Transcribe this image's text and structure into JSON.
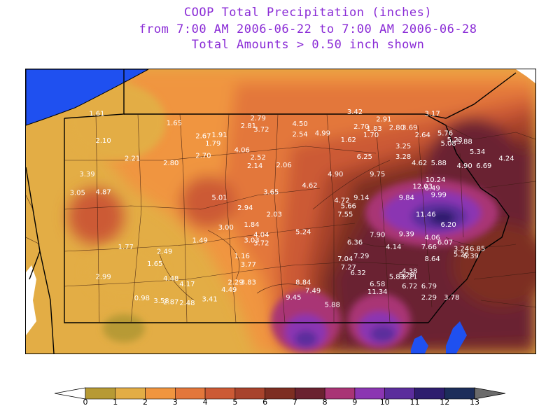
{
  "title": {
    "line1": "COOP Total Precipitation (inches)",
    "line2": "from 7:00 AM 2006-06-22 to 7:00 AM 2006-06-28",
    "line3": "Total Amounts > 0.50 inch shown"
  },
  "colors": {
    "lake": "#1f50f0",
    "land_background": "#e9a847",
    "state_border": "#000000",
    "county_border": "#3a1a10",
    "label": "#ffffff"
  },
  "legend": {
    "ticks": [
      "0",
      "1",
      "2",
      "3",
      "4",
      "5",
      "6",
      "7",
      "8",
      "9",
      "10",
      "11",
      "12",
      "13"
    ],
    "bins": [
      {
        "from": 0,
        "to": 1,
        "color": "#b79a34"
      },
      {
        "from": 1,
        "to": 2,
        "color": "#e3ad45"
      },
      {
        "from": 2,
        "to": 3,
        "color": "#f0953f"
      },
      {
        "from": 3,
        "to": 4,
        "color": "#e3773b"
      },
      {
        "from": 4,
        "to": 5,
        "color": "#cc5a35"
      },
      {
        "from": 5,
        "to": 6,
        "color": "#a8432c"
      },
      {
        "from": 6,
        "to": 7,
        "color": "#7d2e22"
      },
      {
        "from": 7,
        "to": 8,
        "color": "#6a2230"
      },
      {
        "from": 8,
        "to": 9,
        "color": "#a93475"
      },
      {
        "from": 9,
        "to": 10,
        "color": "#8b36b2"
      },
      {
        "from": 10,
        "to": 11,
        "color": "#5b2d9c"
      },
      {
        "from": 11,
        "to": 12,
        "color": "#2e1d6e"
      },
      {
        "from": 12,
        "to": 13,
        "color": "#1c2d5a"
      }
    ]
  },
  "stations": [
    {
      "v": "1.61",
      "x": -80.1,
      "y": 42.05
    },
    {
      "v": "1.65",
      "x": -78.9,
      "y": 41.95
    },
    {
      "v": "2.79",
      "x": -77.6,
      "y": 42.0
    },
    {
      "v": "3.42",
      "x": -76.1,
      "y": 42.07
    },
    {
      "v": "3.17",
      "x": -74.9,
      "y": 42.05
    },
    {
      "v": "2.81",
      "x": -77.75,
      "y": 41.92
    },
    {
      "v": "3.72",
      "x": -77.55,
      "y": 41.88
    },
    {
      "v": "4.50",
      "x": -76.95,
      "y": 41.94
    },
    {
      "v": "2.91",
      "x": -75.65,
      "y": 41.99
    },
    {
      "v": "2.70",
      "x": -76.0,
      "y": 41.91
    },
    {
      "v": "1.83",
      "x": -75.8,
      "y": 41.89
    },
    {
      "v": "2.80",
      "x": -75.45,
      "y": 41.9
    },
    {
      "v": "3.69",
      "x": -75.25,
      "y": 41.9
    },
    {
      "v": "2.67",
      "x": -78.45,
      "y": 41.81
    },
    {
      "v": "1.91",
      "x": -78.2,
      "y": 41.82
    },
    {
      "v": "2.54",
      "x": -76.95,
      "y": 41.83
    },
    {
      "v": "4.99",
      "x": -76.6,
      "y": 41.84
    },
    {
      "v": "1.62",
      "x": -76.2,
      "y": 41.77
    },
    {
      "v": "1.70",
      "x": -75.85,
      "y": 41.82
    },
    {
      "v": "2.64",
      "x": -75.05,
      "y": 41.82
    },
    {
      "v": "5.76",
      "x": -74.7,
      "y": 41.84
    },
    {
      "v": "2.10",
      "x": -80.0,
      "y": 41.76
    },
    {
      "v": "1.79",
      "x": -78.3,
      "y": 41.73
    },
    {
      "v": "5.23",
      "x": -74.55,
      "y": 41.77
    },
    {
      "v": "5.88",
      "x": -74.4,
      "y": 41.75
    },
    {
      "v": "5.08",
      "x": -74.65,
      "y": 41.73
    },
    {
      "v": "4.06",
      "x": -77.85,
      "y": 41.66
    },
    {
      "v": "3.25",
      "x": -75.35,
      "y": 41.7
    },
    {
      "v": "5.34",
      "x": -74.2,
      "y": 41.64
    },
    {
      "v": "2.21",
      "x": -79.55,
      "y": 41.57
    },
    {
      "v": "2.70",
      "x": -78.45,
      "y": 41.6
    },
    {
      "v": "2.52",
      "x": -77.6,
      "y": 41.58
    },
    {
      "v": "6.25",
      "x": -75.95,
      "y": 41.59
    },
    {
      "v": "3.28",
      "x": -75.35,
      "y": 41.59
    },
    {
      "v": "4.24",
      "x": -73.75,
      "y": 41.57
    },
    {
      "v": "2.80",
      "x": -78.95,
      "y": 41.52
    },
    {
      "v": "2.14",
      "x": -77.65,
      "y": 41.49
    },
    {
      "v": "2.06",
      "x": -77.2,
      "y": 41.5
    },
    {
      "v": "4.62",
      "x": -75.1,
      "y": 41.52
    },
    {
      "v": "5.88",
      "x": -74.8,
      "y": 41.52
    },
    {
      "v": "4.90",
      "x": -74.4,
      "y": 41.49
    },
    {
      "v": "6.69",
      "x": -74.1,
      "y": 41.49
    },
    {
      "v": "3.39",
      "x": -80.25,
      "y": 41.4
    },
    {
      "v": "4.90",
      "x": -76.4,
      "y": 41.4
    },
    {
      "v": "9.75",
      "x": -75.75,
      "y": 41.4
    },
    {
      "v": "10.24",
      "x": -74.85,
      "y": 41.34
    },
    {
      "v": "4.62",
      "x": -76.8,
      "y": 41.28
    },
    {
      "v": "12.03",
      "x": -75.05,
      "y": 41.27
    },
    {
      "v": "6.49",
      "x": -74.9,
      "y": 41.25
    },
    {
      "v": "3.05",
      "x": -80.4,
      "y": 41.2
    },
    {
      "v": "4.87",
      "x": -80.0,
      "y": 41.21
    },
    {
      "v": "3.65",
      "x": -77.4,
      "y": 41.21
    },
    {
      "v": "9.99",
      "x": -74.8,
      "y": 41.18
    },
    {
      "v": "5.01",
      "x": -78.2,
      "y": 41.15
    },
    {
      "v": "9.14",
      "x": -76.0,
      "y": 41.15
    },
    {
      "v": "9.84",
      "x": -75.3,
      "y": 41.15
    },
    {
      "v": "4.72",
      "x": -76.3,
      "y": 41.12
    },
    {
      "v": "2.94",
      "x": -77.8,
      "y": 41.04
    },
    {
      "v": "5.66",
      "x": -76.2,
      "y": 41.06
    },
    {
      "v": "2.03",
      "x": -77.35,
      "y": 40.97
    },
    {
      "v": "7.55",
      "x": -76.25,
      "y": 40.97
    },
    {
      "v": "11.46",
      "x": -75.0,
      "y": 40.97
    },
    {
      "v": "1.84",
      "x": -77.7,
      "y": 40.86
    },
    {
      "v": "3.00",
      "x": -78.1,
      "y": 40.83
    },
    {
      "v": "6.20",
      "x": -74.65,
      "y": 40.86
    },
    {
      "v": "5.24",
      "x": -76.9,
      "y": 40.78
    },
    {
      "v": "4.04",
      "x": -77.55,
      "y": 40.75
    },
    {
      "v": "7.90",
      "x": -75.75,
      "y": 40.75
    },
    {
      "v": "9.39",
      "x": -75.3,
      "y": 40.76
    },
    {
      "v": "4.06",
      "x": -74.9,
      "y": 40.72
    },
    {
      "v": "1.49",
      "x": -78.5,
      "y": 40.69
    },
    {
      "v": "3.03",
      "x": -77.7,
      "y": 40.69
    },
    {
      "v": "3.72",
      "x": -77.55,
      "y": 40.66
    },
    {
      "v": "6.36",
      "x": -76.1,
      "y": 40.67
    },
    {
      "v": "6.07",
      "x": -74.7,
      "y": 40.67
    },
    {
      "v": "1.77",
      "x": -79.65,
      "y": 40.62
    },
    {
      "v": "4.14",
      "x": -75.5,
      "y": 40.62
    },
    {
      "v": "7.66",
      "x": -74.95,
      "y": 40.62
    },
    {
      "v": "3.24",
      "x": -74.45,
      "y": 40.6
    },
    {
      "v": "6.85",
      "x": -74.2,
      "y": 40.6
    },
    {
      "v": "2.49",
      "x": -79.05,
      "y": 40.57
    },
    {
      "v": "5.26",
      "x": -74.45,
      "y": 40.54
    },
    {
      "v": "6.39",
      "x": -74.3,
      "y": 40.52
    },
    {
      "v": "1.16",
      "x": -77.85,
      "y": 40.52
    },
    {
      "v": "7.29",
      "x": -76.0,
      "y": 40.52
    },
    {
      "v": "7.04",
      "x": -76.25,
      "y": 40.49
    },
    {
      "v": "8.64",
      "x": -74.9,
      "y": 40.49
    },
    {
      "v": "1.65",
      "x": -79.2,
      "y": 40.44
    },
    {
      "v": "3.77",
      "x": -77.75,
      "y": 40.43
    },
    {
      "v": "7.27",
      "x": -76.2,
      "y": 40.4
    },
    {
      "v": "4.38",
      "x": -75.25,
      "y": 40.36
    },
    {
      "v": "6.32",
      "x": -76.05,
      "y": 40.34
    },
    {
      "v": "5.28",
      "x": -75.3,
      "y": 40.32
    },
    {
      "v": "2.99",
      "x": -80.0,
      "y": 40.3
    },
    {
      "v": "4.48",
      "x": -78.95,
      "y": 40.28
    },
    {
      "v": "5.83",
      "x": -75.45,
      "y": 40.3
    },
    {
      "v": "3.21",
      "x": -75.25,
      "y": 40.3
    },
    {
      "v": "2.29",
      "x": -77.95,
      "y": 40.24
    },
    {
      "v": "3.83",
      "x": -77.75,
      "y": 40.24
    },
    {
      "v": "8.84",
      "x": -76.9,
      "y": 40.24
    },
    {
      "v": "4.17",
      "x": -78.7,
      "y": 40.22
    },
    {
      "v": "6.58",
      "x": -75.75,
      "y": 40.22
    },
    {
      "v": "6.72",
      "x": -75.25,
      "y": 40.2
    },
    {
      "v": "6.79",
      "x": -74.95,
      "y": 40.2
    },
    {
      "v": "4.49",
      "x": -78.05,
      "y": 40.16
    },
    {
      "v": "7.49",
      "x": -76.75,
      "y": 40.15
    },
    {
      "v": "11.34",
      "x": -75.75,
      "y": 40.14
    },
    {
      "v": "2.29",
      "x": -74.95,
      "y": 40.08
    },
    {
      "v": "3.78",
      "x": -74.6,
      "y": 40.08
    },
    {
      "v": "9.45",
      "x": -77.05,
      "y": 40.08
    },
    {
      "v": "0.98",
      "x": -79.4,
      "y": 40.07
    },
    {
      "v": "3.41",
      "x": -78.35,
      "y": 40.06
    },
    {
      "v": "3.58",
      "x": -79.1,
      "y": 40.04
    },
    {
      "v": "2.87",
      "x": -78.95,
      "y": 40.03
    },
    {
      "v": "2.48",
      "x": -78.7,
      "y": 40.02
    },
    {
      "v": "5.88",
      "x": -76.45,
      "y": 40.0
    }
  ]
}
